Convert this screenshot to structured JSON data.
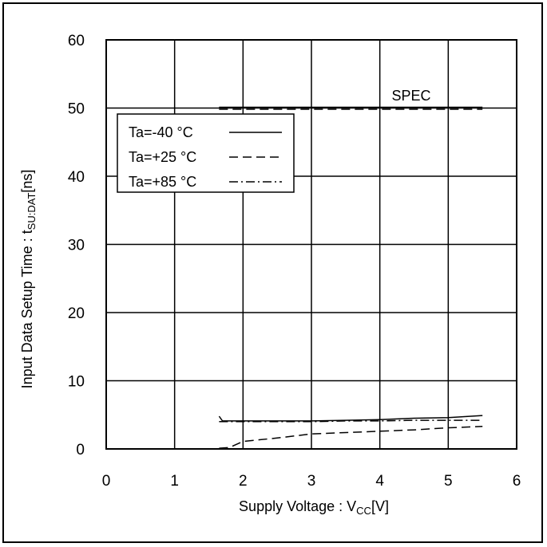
{
  "chart_data": {
    "type": "line",
    "title": "",
    "xlabel": {
      "main": "Supply Voltage : V",
      "sub": "CC",
      "unit": "[V]"
    },
    "ylabel": {
      "main": "Input Data Setup Time : t",
      "sub": "SU:DAT",
      "unit": "[ns]"
    },
    "xlim": [
      0,
      6
    ],
    "ylim": [
      0,
      60
    ],
    "xticks": [
      0,
      1,
      2,
      3,
      4,
      5,
      6
    ],
    "yticks": [
      0,
      10,
      20,
      30,
      40,
      50,
      60
    ],
    "grid": true,
    "legend_position": "top-left",
    "series": [
      {
        "name": "Ta=-40 °C",
        "style": "solid",
        "x": [
          1.65,
          1.7,
          2.0,
          2.5,
          3.0,
          3.5,
          4.0,
          4.5,
          5.0,
          5.5
        ],
        "y": [
          4.8,
          4.1,
          4.1,
          4.1,
          4.1,
          4.2,
          4.3,
          4.5,
          4.6,
          4.9
        ]
      },
      {
        "name": "Ta=+25 °C",
        "style": "dashed",
        "x": [
          1.65,
          1.8,
          2.0,
          2.5,
          3.0,
          3.5,
          4.0,
          4.5,
          5.0,
          5.5
        ],
        "y": [
          0.1,
          0.2,
          1.1,
          1.6,
          2.2,
          2.4,
          2.6,
          2.8,
          3.1,
          3.3
        ]
      },
      {
        "name": "Ta=+85 °C",
        "style": "dashdot",
        "x": [
          1.65,
          2.0,
          2.5,
          3.0,
          3.5,
          4.0,
          4.5,
          5.0,
          5.5
        ],
        "y": [
          4.0,
          4.0,
          4.0,
          4.0,
          4.1,
          4.1,
          4.2,
          4.2,
          4.2
        ]
      }
    ],
    "spec": {
      "label": "SPEC",
      "x": [
        1.65,
        5.5
      ],
      "y": 50
    }
  }
}
